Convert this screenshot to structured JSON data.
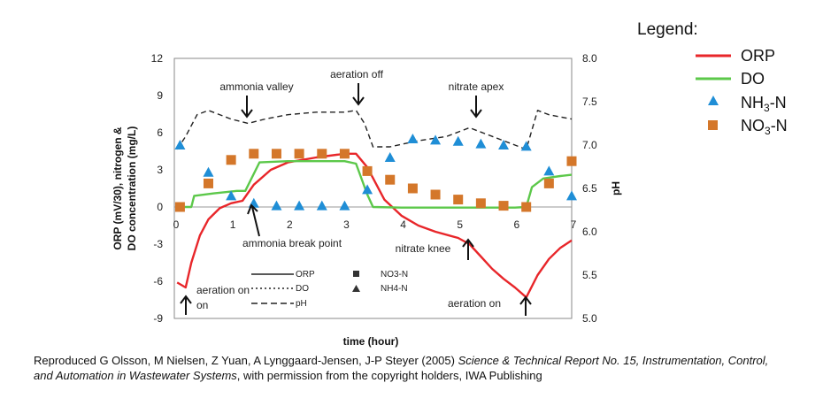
{
  "chart_data": {
    "type": "line",
    "xlabel": "time (hour)",
    "ylabel_left_line1": "ORP (mV/30), nitrogen &",
    "ylabel_left_line2": "DO concentration (mg/L)",
    "ylabel_right": "pH",
    "xlim": [
      0,
      7
    ],
    "ylim": [
      -9,
      12
    ],
    "y2lim": [
      5.0,
      8.0
    ],
    "x_ticks": [
      "0",
      "1",
      "2",
      "3",
      "4",
      "5",
      "6",
      "7"
    ],
    "y_ticks": [
      "12",
      "9",
      "6",
      "3",
      "0",
      "-3",
      "-6",
      "-9"
    ],
    "y2_ticks": [
      "8.0",
      "7.5",
      "7.0",
      "6.5",
      "6.0",
      "5.5",
      "5.0"
    ],
    "series": [
      {
        "name": "ORP",
        "axis": "left",
        "style": "line",
        "color": "#e8262a",
        "x": [
          0.05,
          0.2,
          0.3,
          0.45,
          0.6,
          0.8,
          1.0,
          1.2,
          1.4,
          1.7,
          2.0,
          2.5,
          3.0,
          3.2,
          3.4,
          3.7,
          4.0,
          4.3,
          4.6,
          5.0,
          5.2,
          5.4,
          5.6,
          5.8,
          6.0,
          6.2,
          6.4,
          6.6,
          6.8,
          7.0
        ],
        "y": [
          -6.1,
          -6.5,
          -4.5,
          -2.3,
          -1.0,
          -0.1,
          0.3,
          0.5,
          1.8,
          3.0,
          3.6,
          4.0,
          4.3,
          4.3,
          3.2,
          0.6,
          -0.7,
          -1.5,
          -2.0,
          -2.5,
          -3.0,
          -4.0,
          -5.0,
          -5.8,
          -6.5,
          -7.3,
          -5.5,
          -4.2,
          -3.3,
          -2.7
        ]
      },
      {
        "name": "DO",
        "axis": "left",
        "style": "line",
        "color": "#5cc84a",
        "x": [
          0.05,
          0.3,
          0.35,
          0.7,
          1.1,
          1.25,
          1.5,
          2.0,
          3.0,
          3.2,
          3.4,
          3.5,
          4.0,
          5.0,
          6.0,
          6.2,
          6.3,
          6.5,
          6.8,
          7.0
        ],
        "y": [
          0.0,
          0.0,
          0.9,
          1.1,
          1.3,
          1.3,
          3.6,
          3.7,
          3.7,
          3.5,
          1.0,
          0.0,
          -0.05,
          -0.05,
          -0.05,
          0.0,
          1.6,
          2.3,
          2.5,
          2.6
        ]
      },
      {
        "name": "pH",
        "axis": "right",
        "style": "dashed",
        "color": "#222222",
        "x": [
          0.05,
          0.2,
          0.4,
          0.6,
          1.0,
          1.3,
          1.6,
          2.0,
          2.5,
          3.0,
          3.2,
          3.35,
          3.5,
          3.8,
          4.3,
          4.8,
          5.2,
          5.6,
          6.0,
          6.2,
          6.4,
          6.6,
          7.0
        ],
        "y": [
          6.95,
          7.1,
          7.35,
          7.4,
          7.3,
          7.25,
          7.3,
          7.35,
          7.38,
          7.38,
          7.4,
          7.25,
          6.98,
          6.98,
          7.05,
          7.1,
          7.2,
          7.1,
          7.0,
          6.95,
          7.4,
          7.35,
          7.3
        ]
      },
      {
        "name": "NH3-N",
        "axis": "left",
        "style": "triangle",
        "color": "#1f8ed6",
        "x": [
          0.1,
          0.6,
          1.0,
          1.4,
          1.8,
          2.2,
          2.6,
          3.0,
          3.4,
          3.8,
          4.2,
          4.6,
          5.0,
          5.4,
          5.8,
          6.2,
          6.6,
          7.0
        ],
        "y": [
          5.0,
          2.8,
          0.9,
          0.3,
          0.1,
          0.1,
          0.1,
          0.1,
          1.4,
          4.0,
          5.5,
          5.4,
          5.3,
          5.1,
          5.0,
          4.9,
          2.9,
          0.9
        ]
      },
      {
        "name": "NO3-N",
        "axis": "left",
        "style": "square",
        "color": "#d4772a",
        "x": [
          0.1,
          0.6,
          1.0,
          1.4,
          1.8,
          2.2,
          2.6,
          3.0,
          3.4,
          3.8,
          4.2,
          4.6,
          5.0,
          5.4,
          5.8,
          6.2,
          6.6,
          7.0
        ],
        "y": [
          0.0,
          1.9,
          3.8,
          4.3,
          4.3,
          4.3,
          4.3,
          4.3,
          2.9,
          2.2,
          1.5,
          1.0,
          0.6,
          0.3,
          0.1,
          0.0,
          1.9,
          3.7
        ]
      }
    ],
    "annotations": [
      {
        "text": "ammonia valley"
      },
      {
        "text": "aeration off"
      },
      {
        "text": "nitrate apex"
      },
      {
        "text": "ammonia break point"
      },
      {
        "text": "nitrate knee"
      },
      {
        "text": "aeration on"
      },
      {
        "text": "aeration on"
      }
    ],
    "inner_legend": [
      "ORP",
      "DO",
      "pH",
      "NO3-N",
      "NH4-N"
    ],
    "legend": {
      "title": "Legend:",
      "placement": "right",
      "items": [
        {
          "label": "ORP",
          "symbol": "line",
          "color": "#e8262a"
        },
        {
          "label": "DO",
          "symbol": "line",
          "color": "#5cc84a"
        },
        {
          "label_main": "NH",
          "label_sub": "3",
          "label_tail": "-N",
          "symbol": "triangle",
          "color": "#1f8ed6"
        },
        {
          "label_main": "NO",
          "label_sub": "3",
          "label_tail": "-N",
          "symbol": "square",
          "color": "#d4772a"
        }
      ]
    }
  },
  "caption": {
    "prefix": "Reproduced G Olsson, M Nielsen, Z Yuan, A Lynggaard-Jensen, J-P Steyer (2005) ",
    "italic": "Science & Technical Report No. 15, Instrumentation, Control, and Automation in Wastewater Systems",
    "suffix": ", with permission from the copyright holders, IWA Publishing"
  }
}
